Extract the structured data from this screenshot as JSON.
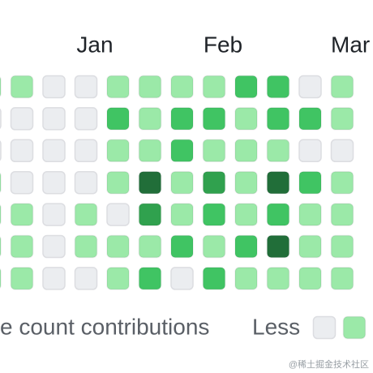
{
  "calendar": {
    "months": [
      "Jan",
      "Feb",
      "Mar"
    ],
    "colors": [
      "#ebedf0",
      "#9be9a8",
      "#40c463",
      "#30a14e",
      "#216e39"
    ],
    "rows": [
      [
        1,
        1,
        0,
        0,
        1,
        1,
        1,
        1,
        2,
        2,
        0,
        1
      ],
      [
        0,
        0,
        0,
        0,
        2,
        1,
        2,
        2,
        1,
        2,
        2,
        1
      ],
      [
        0,
        0,
        0,
        0,
        1,
        1,
        2,
        1,
        1,
        1,
        0,
        0
      ],
      [
        1,
        0,
        0,
        0,
        1,
        4,
        1,
        3,
        1,
        4,
        2,
        1
      ],
      [
        1,
        1,
        0,
        1,
        0,
        3,
        1,
        2,
        1,
        2,
        1,
        1
      ],
      [
        1,
        1,
        0,
        1,
        1,
        1,
        2,
        1,
        2,
        4,
        1,
        1
      ],
      [
        1,
        1,
        0,
        0,
        1,
        2,
        0,
        2,
        1,
        1,
        1,
        1
      ]
    ],
    "footer": "e count contributions",
    "legend_less": "Less",
    "legend_levels": [
      0,
      1
    ],
    "watermark": "@稀土掘金技术社区"
  }
}
